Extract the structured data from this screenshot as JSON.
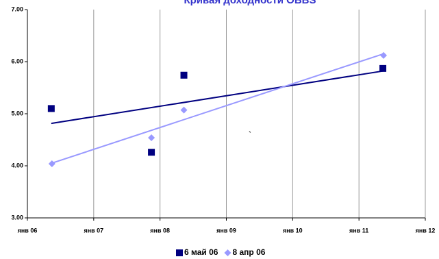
{
  "chart_data": {
    "type": "scatter",
    "title": "Кривая доходности OBBS",
    "annotations": [
      "`"
    ],
    "series": [
      {
        "name": "6 май 06",
        "color": "#000080",
        "marker": "square",
        "trendline": true,
        "x": [
          2006.36,
          2007.87,
          2008.36,
          2011.36
        ],
        "values": [
          5.1,
          4.26,
          5.74,
          5.87
        ]
      },
      {
        "name": "8 апр 06",
        "color": "#9999ff",
        "marker": "diamond",
        "trendline": true,
        "x": [
          2006.37,
          2007.87,
          2008.36,
          2011.37
        ],
        "values": [
          4.04,
          4.54,
          5.07,
          6.12
        ]
      }
    ],
    "xlim": [
      2006,
      2012
    ],
    "xticks": [
      {
        "value": 2006,
        "label": "янв 06"
      },
      {
        "value": 2007,
        "label": "янв 07"
      },
      {
        "value": 2008,
        "label": "янв 08"
      },
      {
        "value": 2009,
        "label": "янв 09"
      },
      {
        "value": 2010,
        "label": "янв 10"
      },
      {
        "value": 2011,
        "label": "янв 11"
      },
      {
        "value": 2012,
        "label": "янв 12"
      }
    ],
    "ylim": [
      3,
      7
    ],
    "yticks": [
      {
        "value": 3,
        "label": "3.00"
      },
      {
        "value": 4,
        "label": "4.00"
      },
      {
        "value": 5,
        "label": "5.00"
      },
      {
        "value": 6,
        "label": "6.00"
      },
      {
        "value": 7,
        "label": "7.00"
      }
    ],
    "grid": "x",
    "legend": "bottom"
  }
}
